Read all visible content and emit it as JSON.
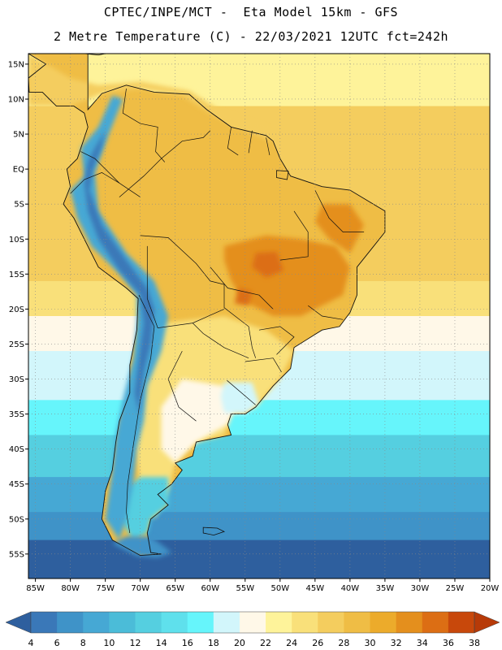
{
  "header": {
    "line1": "CPTEC/INPE/MCT -  Eta Model 15km - GFS",
    "line2": "2 Metre Temperature (C) - 22/03/2021 12UTC fct=242h"
  },
  "axes": {
    "lat_labels": [
      "15N",
      "10N",
      "5N",
      "EQ",
      "5S",
      "10S",
      "15S",
      "20S",
      "25S",
      "30S",
      "35S",
      "40S",
      "45S",
      "50S",
      "55S"
    ],
    "lat_values": [
      15,
      10,
      5,
      0,
      -5,
      -10,
      -15,
      -20,
      -25,
      -30,
      -35,
      -40,
      -45,
      -50,
      -55
    ],
    "lon_labels": [
      "85W",
      "80W",
      "75W",
      "70W",
      "65W",
      "60W",
      "55W",
      "50W",
      "45W",
      "40W",
      "35W",
      "30W",
      "25W",
      "20W"
    ],
    "lon_values": [
      -85,
      -80,
      -75,
      -70,
      -65,
      -60,
      -55,
      -50,
      -45,
      -40,
      -35,
      -30,
      -25,
      -20
    ],
    "lat_range": [
      -58.5,
      16.5
    ],
    "lon_range": [
      -86,
      -20
    ]
  },
  "colorbar": {
    "ticks": [
      "4",
      "6",
      "8",
      "10",
      "12",
      "14",
      "16",
      "18",
      "20",
      "22",
      "24",
      "26",
      "28",
      "30",
      "32",
      "34",
      "36",
      "38"
    ],
    "colors": [
      "#2e5f9e",
      "#3a78b8",
      "#3f93c8",
      "#46a8d4",
      "#4bbcd8",
      "#55cfe0",
      "#5fe0ec",
      "#66f5fb",
      "#d2f6fb",
      "#fff8e8",
      "#fef39a",
      "#f9e07a",
      "#f4cd5e",
      "#efbd45",
      "#ecab2b",
      "#e48f1d",
      "#dc6e14",
      "#c8480b",
      "#b73a08"
    ]
  },
  "map_regions": {
    "ocean_bands": [
      {
        "lat_top": 16.5,
        "lat_bottom": 9,
        "color": "#fef39a"
      },
      {
        "lat_top": 9,
        "lat_bottom": -16,
        "color": "#f4cd5e"
      },
      {
        "lat_top": -16,
        "lat_bottom": -21,
        "color": "#f9e07a"
      },
      {
        "lat_top": -21,
        "lat_bottom": -26,
        "color": "#fff8e8"
      },
      {
        "lat_top": -26,
        "lat_bottom": -33,
        "color": "#d2f6fb"
      },
      {
        "lat_top": -33,
        "lat_bottom": -38,
        "color": "#66f5fb"
      },
      {
        "lat_top": -38,
        "lat_bottom": -44,
        "color": "#55cfe0"
      },
      {
        "lat_top": -44,
        "lat_bottom": -49,
        "color": "#46a8d4"
      },
      {
        "lat_top": -49,
        "lat_bottom": -53,
        "color": "#3f93c8"
      },
      {
        "lat_top": -53,
        "lat_bottom": -58.5,
        "color": "#2e5f9e"
      }
    ],
    "land_colors": {
      "amazon": "#efbd45",
      "north_coast": "#f4cd5e",
      "hot_core": "#e48f1d",
      "hot_spot": "#dc6e14",
      "south_cone": "#f9e07a",
      "pampas": "#fff8e8",
      "uruguay": "#d2f6fb",
      "andes_high": "#3a78b8",
      "andes_mid": "#46a8d4",
      "patagonia": "#55cfe0",
      "tierra": "#3f93c8"
    }
  }
}
